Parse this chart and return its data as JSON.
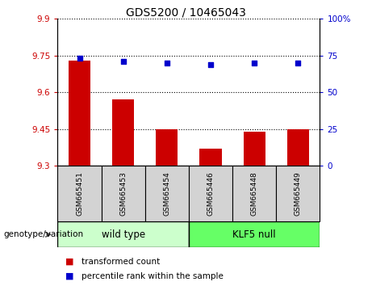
{
  "title": "GDS5200 / 10465043",
  "samples": [
    "GSM665451",
    "GSM665453",
    "GSM665454",
    "GSM665446",
    "GSM665448",
    "GSM665449"
  ],
  "bar_values": [
    9.73,
    9.57,
    9.45,
    9.37,
    9.44,
    9.45
  ],
  "percentile_values": [
    73,
    71,
    70,
    69,
    70,
    70
  ],
  "ylim_left": [
    9.3,
    9.9
  ],
  "ylim_right": [
    0,
    100
  ],
  "yticks_left": [
    9.3,
    9.45,
    9.6,
    9.75,
    9.9
  ],
  "yticks_right": [
    0,
    25,
    50,
    75,
    100
  ],
  "ytick_labels_left": [
    "9.3",
    "9.45",
    "9.6",
    "9.75",
    "9.9"
  ],
  "ytick_labels_right": [
    "0",
    "25",
    "50",
    "75",
    "100%"
  ],
  "bar_color": "#cc0000",
  "dot_color": "#0000cc",
  "group1_label": "wild type",
  "group2_label": "KLF5 null",
  "group1_color": "#ccffcc",
  "group2_color": "#66ff66",
  "group1_indices": [
    0,
    1,
    2
  ],
  "group2_indices": [
    3,
    4,
    5
  ],
  "legend_bar_label": "transformed count",
  "legend_dot_label": "percentile rank within the sample",
  "genotype_label": "genotype/variation",
  "tick_color_left": "#cc0000",
  "tick_color_right": "#0000cc",
  "gray_box_color": "#d3d3d3"
}
